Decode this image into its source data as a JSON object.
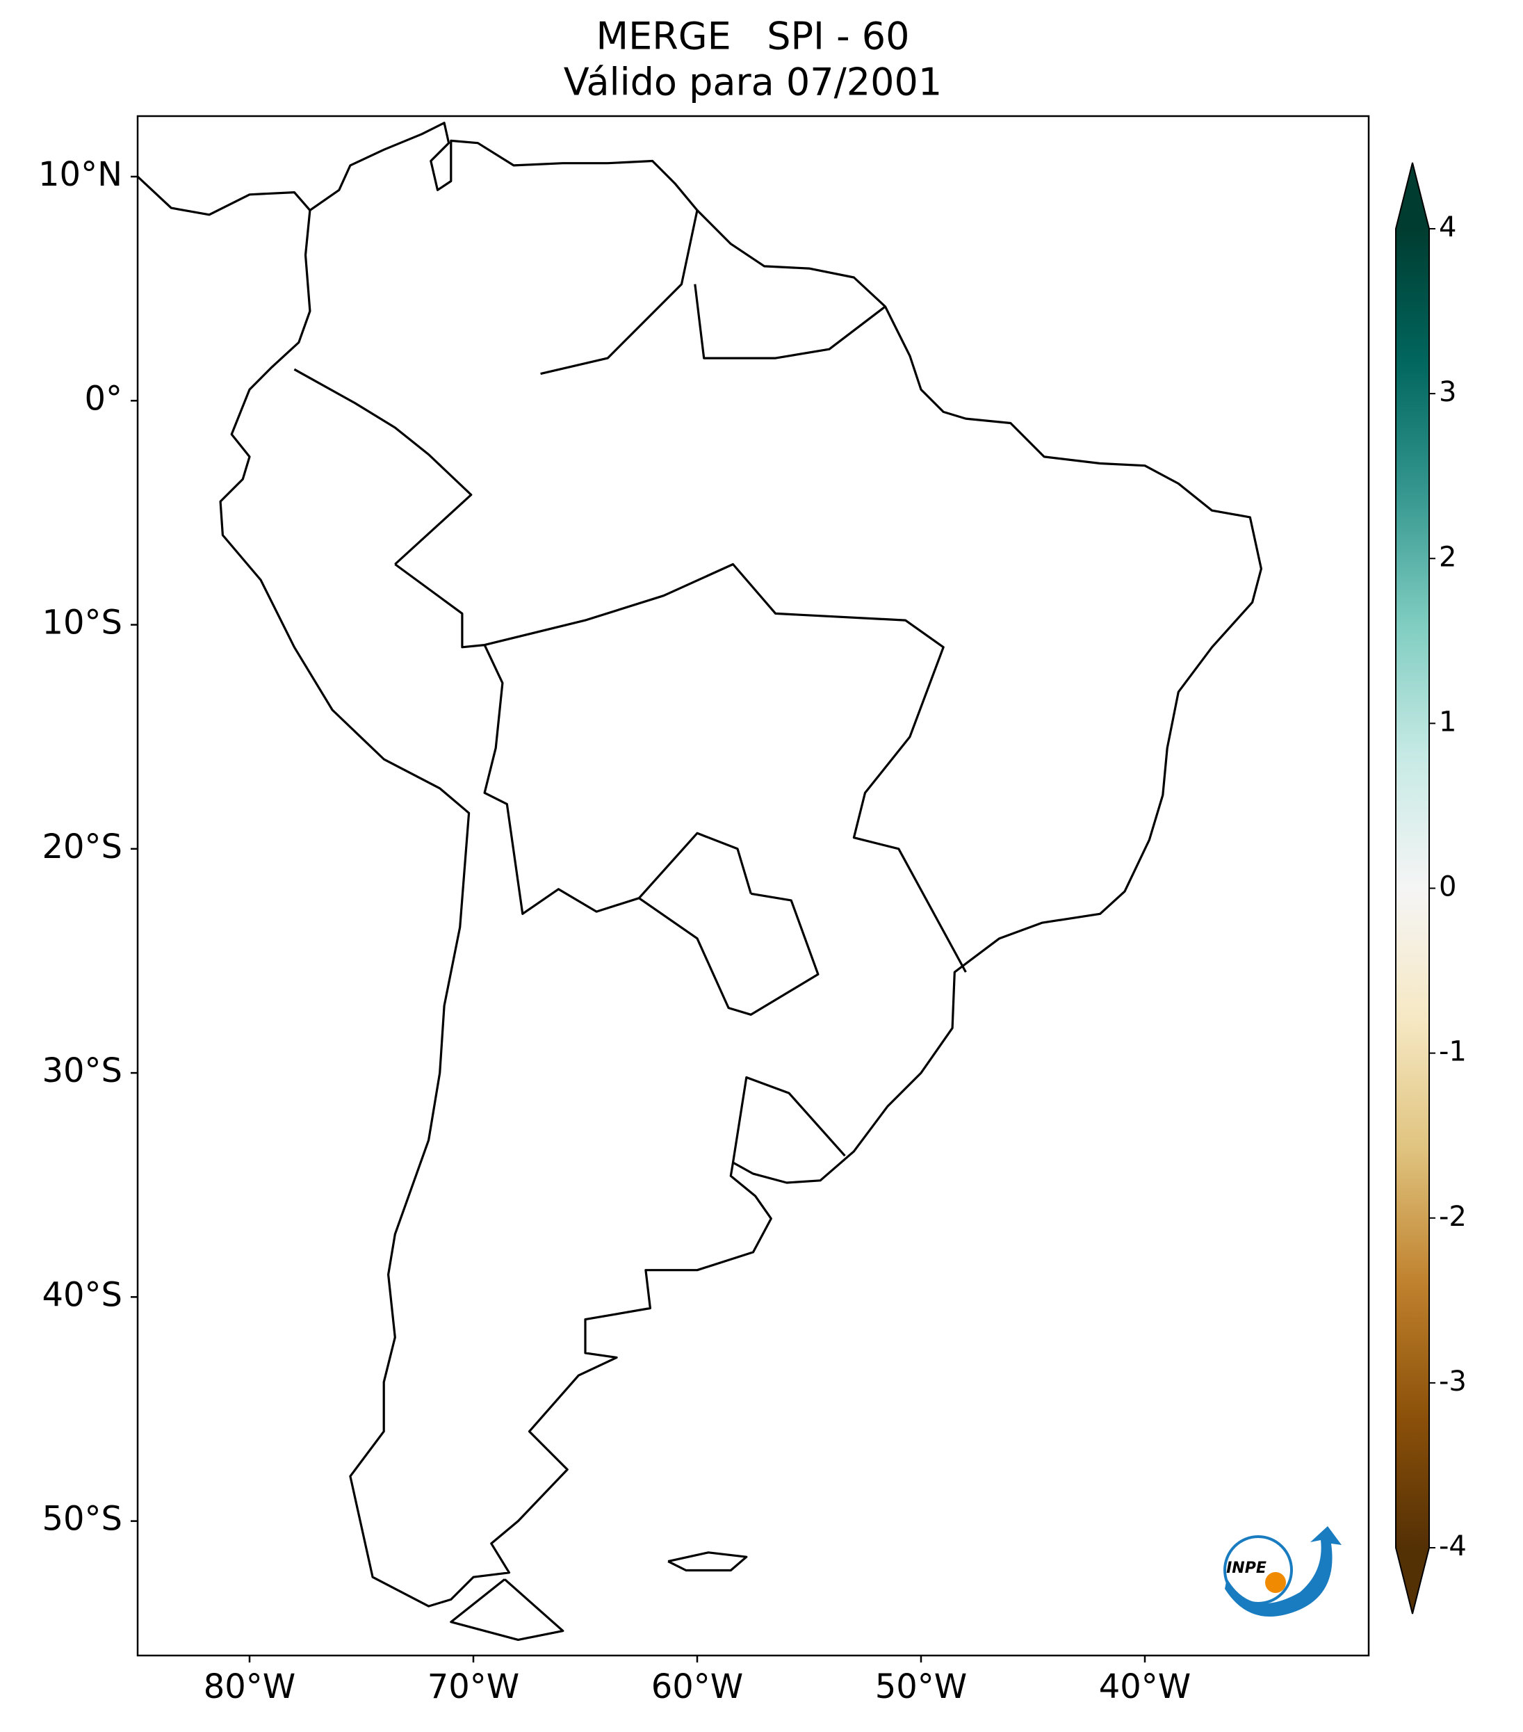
{
  "chart_data": {
    "type": "map",
    "title": "MERGE   SPI - 60",
    "subtitle": "Válido para 07/2001",
    "xlim": [
      -85,
      -30
    ],
    "ylim": [
      -56,
      12.7
    ],
    "xticks": [
      {
        "value": -80,
        "label": "80°W"
      },
      {
        "value": -70,
        "label": "70°W"
      },
      {
        "value": -60,
        "label": "60°W"
      },
      {
        "value": -50,
        "label": "50°W"
      },
      {
        "value": -40,
        "label": "40°W"
      }
    ],
    "yticks": [
      {
        "value": 10,
        "label": "10°N"
      },
      {
        "value": 0,
        "label": "0°"
      },
      {
        "value": -10,
        "label": "10°S"
      },
      {
        "value": -20,
        "label": "20°S"
      },
      {
        "value": -30,
        "label": "30°S"
      },
      {
        "value": -40,
        "label": "40°S"
      },
      {
        "value": -50,
        "label": "50°S"
      }
    ],
    "colorbar": {
      "lim": [
        -4,
        4
      ],
      "ticks": [
        -4,
        -3,
        -2,
        -1,
        0,
        1,
        2,
        3,
        4
      ],
      "extend": "both",
      "colors": [
        "#543005",
        "#8c510a",
        "#bf812d",
        "#dfc27d",
        "#f6e8c3",
        "#f5f5f5",
        "#c7eae5",
        "#80cdc1",
        "#35978f",
        "#01665e",
        "#003c30"
      ]
    },
    "logo_text": "INPE"
  }
}
